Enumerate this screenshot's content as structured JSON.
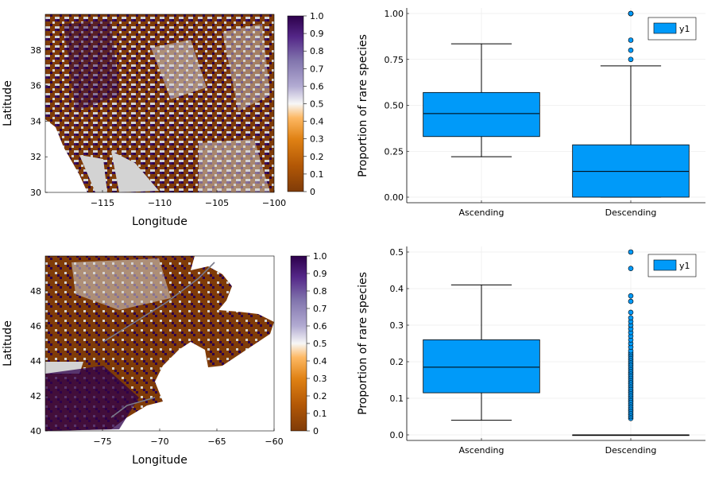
{
  "chart_data": [
    {
      "type": "heatmap",
      "region": "west",
      "xlabel": "Longitude",
      "ylabel": "Latitude",
      "xlim": [
        -120,
        -100
      ],
      "ylim": [
        30,
        40
      ],
      "xticks": [
        -115,
        -110,
        -105,
        -100
      ],
      "yticks": [
        30,
        32,
        34,
        36,
        38
      ],
      "colorbar": {
        "min": 0,
        "max": 1,
        "ticks": [
          0,
          0.1,
          0.2,
          0.3,
          0.4,
          0.5,
          0.6,
          0.7,
          0.8,
          0.9,
          1.0
        ]
      },
      "colors": {
        "low": "#7f3b08",
        "mid": "#f7f7f7",
        "high": "#2d004b",
        "missing": "#d3d3d3"
      }
    },
    {
      "type": "box",
      "panel": "top-right",
      "categories": [
        "Ascending",
        "Descending"
      ],
      "ylabel": "Proportion of rare species",
      "ylim": [
        0,
        1
      ],
      "yticks": [
        "0.00",
        "0.25",
        "0.50",
        "0.75",
        "1.00"
      ],
      "legend": {
        "label": "y1",
        "position": "top-right"
      },
      "boxes": [
        {
          "category": "Ascending",
          "whisker_low": 0.22,
          "q1": 0.33,
          "median": 0.455,
          "q3": 0.57,
          "whisker_high": 0.835,
          "outliers": []
        },
        {
          "category": "Descending",
          "whisker_low": 0.0,
          "q1": 0.0,
          "median": 0.14,
          "q3": 0.285,
          "whisker_high": 0.715,
          "outliers": [
            0.75,
            0.8,
            0.855,
            1.0,
            1.0,
            1.0
          ]
        }
      ],
      "fill": "#009af9"
    },
    {
      "type": "heatmap",
      "region": "northeast",
      "xlabel": "Longitude",
      "ylabel": "Latitude",
      "xlim": [
        -80,
        -60
      ],
      "ylim": [
        40,
        50
      ],
      "xticks": [
        -75,
        -70,
        -65,
        -60
      ],
      "yticks": [
        40,
        42,
        44,
        46,
        48
      ],
      "colorbar": {
        "min": 0,
        "max": 1,
        "ticks": [
          0,
          0.1,
          0.2,
          0.3,
          0.4,
          0.5,
          0.6,
          0.7,
          0.8,
          0.9,
          1.0
        ]
      },
      "colors": {
        "low": "#7f3b08",
        "mid": "#f7f7f7",
        "high": "#2d004b",
        "missing": "#d3d3d3"
      }
    },
    {
      "type": "box",
      "panel": "bottom-right",
      "categories": [
        "Ascending",
        "Descending"
      ],
      "ylabel": "Proportion of rare species",
      "ylim": [
        0,
        0.5
      ],
      "yticks": [
        "0.0",
        "0.1",
        "0.2",
        "0.3",
        "0.4",
        "0.5"
      ],
      "legend": {
        "label": "y1",
        "position": "top-right"
      },
      "boxes": [
        {
          "category": "Ascending",
          "whisker_low": 0.04,
          "q1": 0.115,
          "median": 0.185,
          "q3": 0.26,
          "whisker_high": 0.41,
          "outliers": []
        },
        {
          "category": "Descending",
          "whisker_low": 0.0,
          "q1": 0.0,
          "median": 0.0,
          "q3": 0.0,
          "whisker_high": 0.0,
          "outliers": [
            0.045,
            0.05,
            0.055,
            0.06,
            0.065,
            0.07,
            0.075,
            0.08,
            0.085,
            0.09,
            0.095,
            0.1,
            0.105,
            0.11,
            0.115,
            0.12,
            0.125,
            0.13,
            0.135,
            0.14,
            0.145,
            0.15,
            0.155,
            0.16,
            0.165,
            0.17,
            0.175,
            0.18,
            0.185,
            0.19,
            0.195,
            0.2,
            0.205,
            0.21,
            0.215,
            0.22,
            0.225,
            0.23,
            0.24,
            0.25,
            0.26,
            0.27,
            0.28,
            0.29,
            0.3,
            0.31,
            0.32,
            0.335,
            0.365,
            0.38,
            0.455,
            0.5
          ]
        }
      ],
      "fill": "#009af9"
    }
  ]
}
